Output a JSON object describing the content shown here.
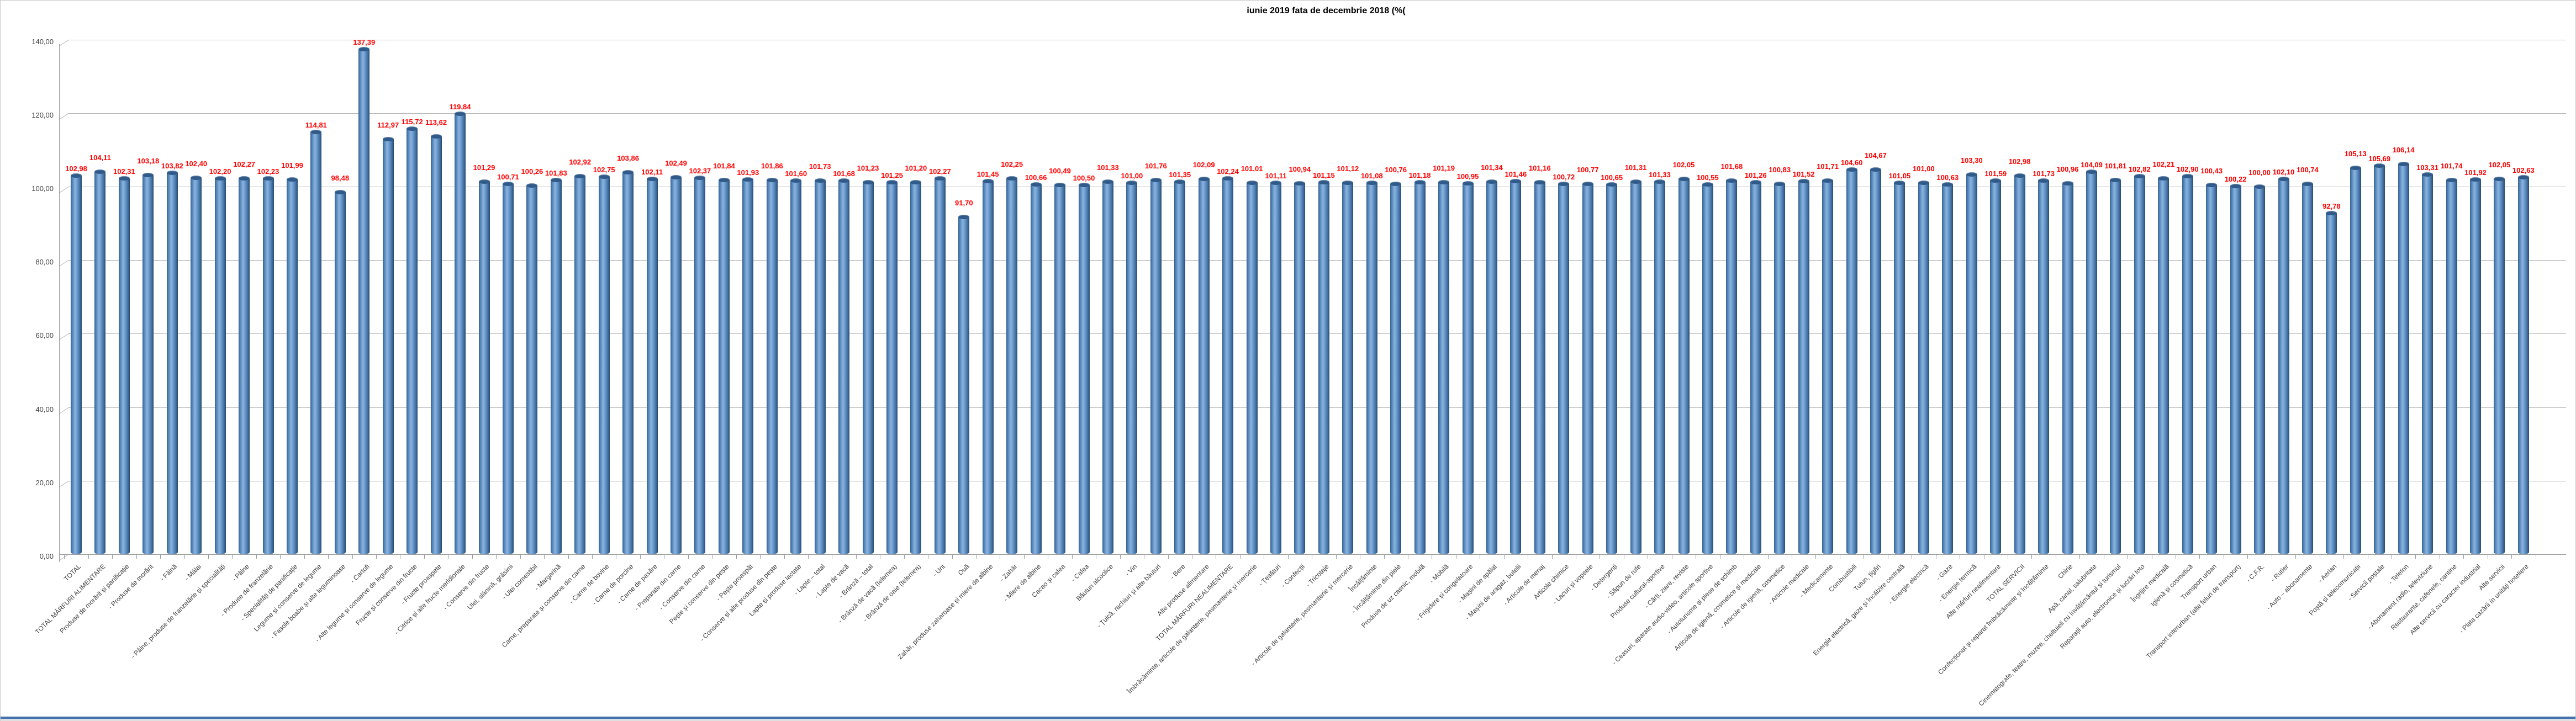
{
  "chart_data": {
    "type": "bar",
    "title": "iunie 2019 fata de decembrie 2018 (%(",
    "xlabel": "",
    "ylabel": "",
    "ylim": [
      0,
      140
    ],
    "yticks": [
      0,
      20,
      40,
      60,
      80,
      100,
      120,
      140
    ],
    "grid": true,
    "legend_position": "none",
    "bar_color": "#4f81bd",
    "value_label_color": "#ff0000",
    "decimal_separator": ",",
    "categories": [
      "TOTAL",
      "TOTAL MĂRFURI ALIMENTARE",
      "Produse de morărit și panificație",
      "- Produse de morărit",
      "- Făină",
      "- Mălai",
      "- Pâine, produse de franzelărie și specialități",
      "- Pâine",
      "- Produse de franzelărie",
      "- Specialități de panificație",
      "Legume și conserve de legume",
      "- Fasole boabe și alte leguminoase",
      "- Cartofi",
      "- Alte legume și conserve de legume",
      "Fructe și conserve din fructe",
      "- Fructe proaspete",
      "- Citrice și alte fructe meridionale",
      "- Conserve din fructe",
      "Ulei, slănină, grăsimi",
      "- Ulei comestibil",
      "- Margarină",
      "Carne, preparate și conserve din carne",
      "- Carne de bovine",
      "- Carne de porcine",
      "- Carne de pasăre",
      "- Preparate din carne",
      "- Conserve din carne",
      "Pește și conserve din pește",
      "- Pește proaspăt",
      "- Conserve și alte produse din pește",
      "Lapte și produse lactate",
      "- Lapte – total",
      "- Lapte de vacă",
      "- Brânză – total",
      "- Brânză de vacă (telemea)",
      "- Brânză de oaie (telemea)",
      "- Unt",
      "Ouă",
      "Zahăr, produse zaharoase și miere de albine",
      "- Zahăr",
      "- Miere de albine",
      "Cacao și cafea",
      "- Cafea",
      "Băuturi alcoolice",
      "- Vin",
      "- Țuică, rachiuri și alte băuturi",
      "- Bere",
      "Alte produse alimentare",
      "TOTAL MĂRFURI NEALIMENTARE",
      "Îmbrăcăminte, articole de galanterie, pasmanterie și mercerie",
      "- Țesături",
      "- Confecții",
      "- Tricotaje",
      "- Articole de galanterie, pasmanterie și mercerie",
      "Încălțăminte",
      "- Încălțăminte din piele",
      "Produse de uz casnic, mobilă",
      "- Mobilă",
      "- Frigidere și congelatoare",
      "- Mașini de spălat",
      "- Mașini de aragaz, butelii",
      "- Articole de menaj",
      "Articole chimice",
      "- Lacuri și vopsele",
      "- Detergenți",
      "- Săpun de rufe",
      "Produse cultural-sportive",
      "- Cărți, ziare, reviste",
      "- Ceasuri, aparate audio-video, articole sportive",
      "- Autoturisme și piese de schimb",
      "Articole de igienă, cosmetice și medicale",
      "- Articole de igienă, cosmetice",
      "- Articole medicale",
      "- Medicamente",
      "Combustibili",
      "Tutun, țigări",
      "Energie electrică, gaze și încălzire centrală",
      "- Energie electrică",
      "- Gaze",
      "- Energie termică",
      "Alte mărfuri nealimentare",
      "TOTAL SERVICII",
      "Confecționat și reparat îmbrăcăminte și încălțăminte",
      "Chirie",
      "Apă, canal, salubritate",
      "Cinematografe, teatre, muzee, cheltuieli cu învățământul și turismul",
      "Reparații auto, electronice și lucrări foto",
      "Îngrijire medicală",
      "Igienă și cosmetică",
      "Transport urban",
      "Transport interurban (alte feluri de transport)",
      "- C.F.R.",
      "- Rutier",
      "- Auto – abonamente",
      "- Aerian",
      "Poștă și telecomunicații",
      "- Servicii poștale",
      "- Telefon",
      "- Abonament radio, televiziune",
      "Restaurante, cafenele, cantine",
      "Alte servicii cu caracter industrial",
      "Alte servicii",
      "- Plata cazării în unități hoteliere"
    ],
    "values": [
      102.98,
      104.11,
      102.31,
      103.18,
      103.82,
      102.4,
      102.2,
      102.27,
      102.23,
      101.99,
      114.81,
      98.48,
      137.39,
      112.97,
      115.72,
      113.62,
      119.84,
      101.29,
      100.71,
      100.26,
      101.83,
      102.92,
      102.75,
      103.86,
      102.11,
      102.49,
      102.37,
      101.84,
      101.93,
      101.86,
      101.6,
      101.73,
      101.68,
      101.23,
      101.25,
      101.2,
      102.27,
      91.7,
      101.45,
      102.25,
      100.66,
      100.49,
      100.5,
      101.33,
      101.0,
      101.76,
      101.35,
      102.09,
      102.24,
      101.01,
      101.11,
      100.94,
      101.15,
      101.12,
      101.08,
      100.76,
      101.18,
      101.19,
      100.95,
      101.34,
      101.46,
      101.16,
      100.72,
      100.77,
      100.65,
      101.31,
      101.33,
      102.05,
      100.55,
      101.68,
      101.26,
      100.83,
      101.52,
      101.71,
      104.6,
      104.67,
      101.05,
      101.0,
      100.63,
      103.3,
      101.59,
      102.98,
      101.73,
      100.96,
      104.09,
      101.81,
      102.82,
      102.21,
      102.9,
      100.43,
      100.22,
      100.0,
      102.1,
      100.74,
      92.78,
      105.13,
      105.69,
      106.14,
      103.31,
      101.74,
      101.92,
      102.05,
      102.63
    ]
  }
}
